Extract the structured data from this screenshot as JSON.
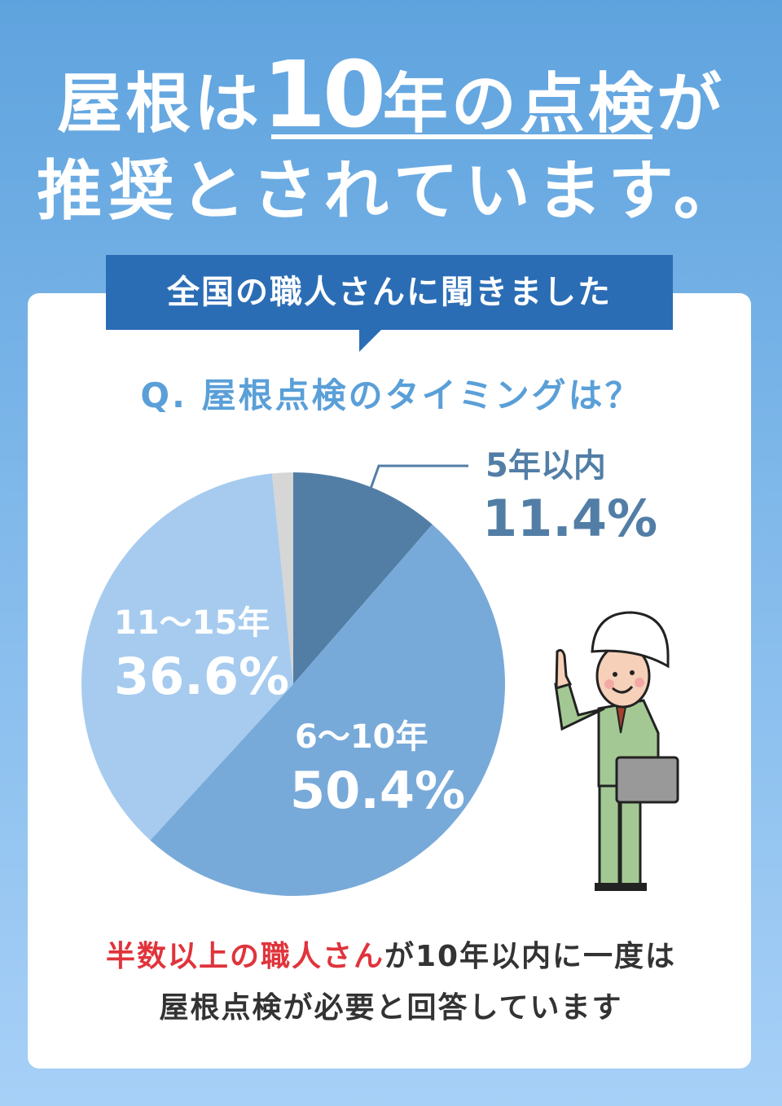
{
  "headline": {
    "line1_pre": "屋根は",
    "line1_big": "10",
    "line1_post": "年の点検が",
    "line2": "推奨とされています。"
  },
  "banner": "全国の職人さんに聞きました",
  "question": "Q. 屋根点検のタイミングは？",
  "chart_data": {
    "type": "pie",
    "title": "Q. 屋根点検のタイミングは？",
    "start_angle": "12 o'clock, clockwise",
    "slices": [
      {
        "label": "5年以内",
        "value": 11.4,
        "display": "11.4%",
        "color": "#527ea6"
      },
      {
        "label": "6〜10年",
        "value": 50.4,
        "display": "50.4%",
        "color": "#78aad9"
      },
      {
        "label": "11〜15年",
        "value": 36.6,
        "display": "36.6%",
        "color": "#a6cbef"
      },
      {
        "label": "",
        "value": 1.6,
        "display": "",
        "color": "#d6d6d6"
      }
    ]
  },
  "caption": {
    "highlight": "半数以上の職人さん",
    "rest1": "が10年以内に一度は",
    "line2": "屋根点検が必要と回答しています"
  }
}
